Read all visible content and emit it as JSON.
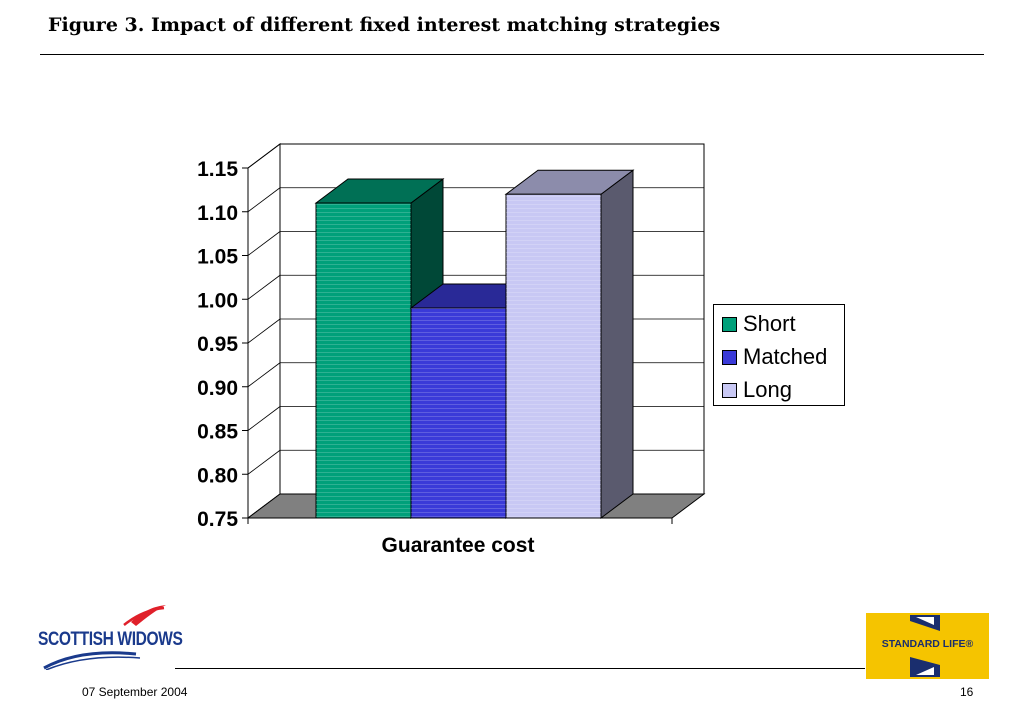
{
  "slide": {
    "title": "Figure 3.  Impact of different fixed interest matching strategies",
    "date": "07 September 2004",
    "page_number": "16"
  },
  "logos": {
    "scottish_widows": "SCOTTISH WIDOWS",
    "standard_life": "STANDARD LIFE®"
  },
  "chart_data": {
    "type": "bar",
    "categories": [
      "Guarantee cost"
    ],
    "series": [
      {
        "name": "Short",
        "values": [
          1.11
        ],
        "color": "#00a07a"
      },
      {
        "name": "Matched",
        "values": [
          0.99
        ],
        "color": "#3a3ad8"
      },
      {
        "name": "Long",
        "values": [
          1.12
        ],
        "color": "#c8c8f4"
      }
    ],
    "ylim": [
      0.75,
      1.15
    ],
    "yticks": [
      "0.75",
      "0.80",
      "0.85",
      "0.90",
      "0.95",
      "1.00",
      "1.05",
      "1.10",
      "1.15"
    ],
    "xlabel": "Guarantee cost",
    "ylabel": "",
    "title": "",
    "grid": true,
    "legend": "right",
    "style": "3d"
  }
}
